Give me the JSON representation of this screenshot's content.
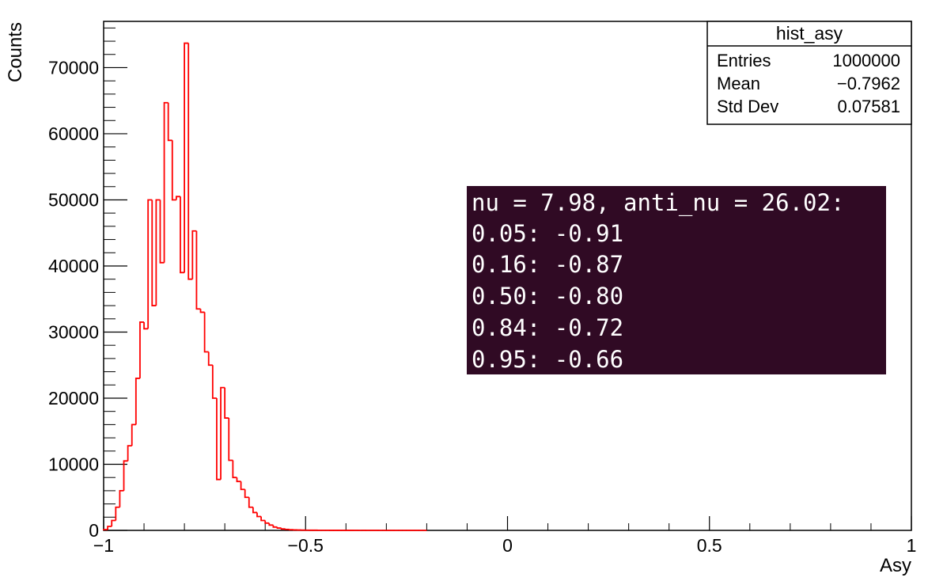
{
  "chart_data": {
    "type": "histogram",
    "title": "",
    "xlabel": "Asy",
    "ylabel": "Counts",
    "xlim": [
      -1,
      1
    ],
    "ylim": [
      0,
      77000
    ],
    "grid": false,
    "x_ticks": [
      {
        "value": -1,
        "label": "−1"
      },
      {
        "value": -0.5,
        "label": "−0.5"
      },
      {
        "value": 0,
        "label": "0"
      },
      {
        "value": 0.5,
        "label": "0.5"
      },
      {
        "value": 1,
        "label": "1"
      }
    ],
    "y_ticks": [
      {
        "value": 0,
        "label": "0"
      },
      {
        "value": 10000,
        "label": "10000"
      },
      {
        "value": 20000,
        "label": "20000"
      },
      {
        "value": 30000,
        "label": "30000"
      },
      {
        "value": 40000,
        "label": "40000"
      },
      {
        "value": 50000,
        "label": "50000"
      },
      {
        "value": 60000,
        "label": "60000"
      },
      {
        "value": 70000,
        "label": "70000"
      }
    ],
    "series": [
      {
        "color": "#ff0000",
        "bin_width": 0.01,
        "x_start": -1.0,
        "values": [
          120,
          600,
          1500,
          3500,
          6000,
          10500,
          12800,
          16000,
          23000,
          31500,
          30500,
          50000,
          34000,
          50000,
          40500,
          64700,
          59000,
          50000,
          50500,
          39000,
          73700,
          38000,
          45300,
          33500,
          33000,
          27000,
          25000,
          20000,
          7700,
          21600,
          17000,
          10600,
          8000,
          7400,
          6200,
          5000,
          3500,
          2700,
          2100,
          1500,
          1100,
          800,
          500,
          350,
          220,
          150,
          100,
          70,
          50,
          40,
          30,
          25,
          20,
          18,
          15,
          12,
          10,
          9,
          8,
          7,
          6,
          5,
          5,
          4,
          4,
          3,
          3,
          3,
          2,
          2,
          2,
          2,
          1,
          1,
          1,
          1,
          1,
          1,
          1,
          1
        ]
      }
    ]
  },
  "stats_box": {
    "title": "hist_asy",
    "rows": [
      {
        "label": "Entries",
        "value": "1000000"
      },
      {
        "label": "Mean",
        "value": "−0.7962"
      },
      {
        "label": "Std Dev",
        "value": "0.07581"
      }
    ]
  },
  "terminal_box": {
    "background": "#300a24",
    "lines": [
      "nu = 7.98, anti_nu = 26.02:",
      "0.05: -0.91",
      "0.16: -0.87",
      "0.50: -0.80",
      "0.84: -0.72",
      "0.95: -0.66"
    ]
  }
}
